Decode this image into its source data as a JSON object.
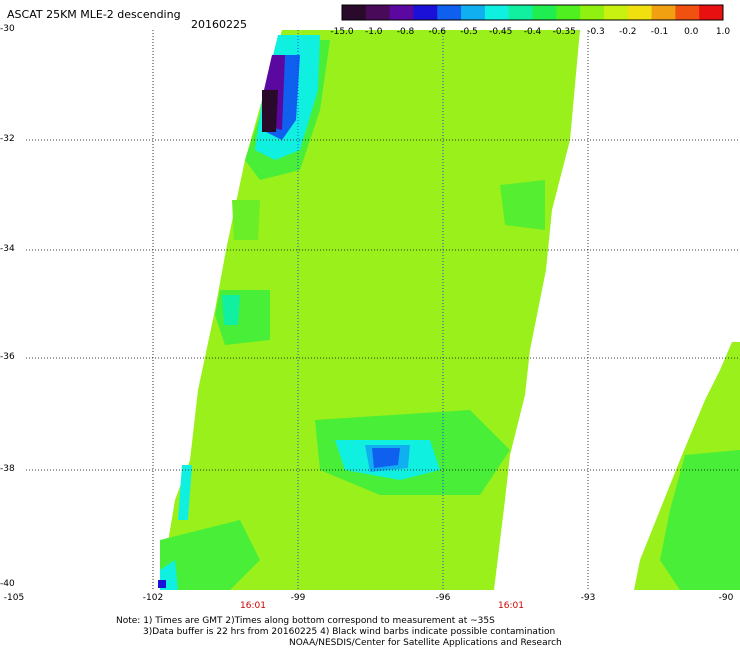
{
  "header": {
    "title": "ASCAT 25KM MLE-2 descending",
    "date": "20160225"
  },
  "colorbar": {
    "colors": [
      "#2a0a2a",
      "#4a0a5a",
      "#5a08a0",
      "#1a10d8",
      "#1060f0",
      "#10b0f0",
      "#10f0e0",
      "#10f0a0",
      "#20ee50",
      "#50f020",
      "#90f010",
      "#c8f010",
      "#f0e010",
      "#f0a010",
      "#f05010",
      "#e81010"
    ],
    "labels": [
      "-15.0",
      "-1.0",
      "-0.8",
      "-0.6",
      "-0.5",
      "-0.45",
      "-0.4",
      "-0.35",
      "-0.3",
      "-0.2",
      "-0.1",
      "0.0",
      "1.0"
    ]
  },
  "axes": {
    "y_labels": [
      "-30",
      "-32",
      "-34",
      "-36",
      "-38",
      "-40"
    ],
    "x_labels": [
      "-105",
      "-102",
      "-99",
      "-96",
      "-93",
      "-90"
    ]
  },
  "times": [
    "16:01",
    "16:01"
  ],
  "notes": [
    "Note: 1) Times are GMT 2)Times along bottom correspond to measurement at ~35S",
    "3)Data buffer is 22 hrs from 20160225 4) Black wind barbs indicate possible contamination",
    "NOAA/NESDIS/Center for Satellite Applications and Research"
  ],
  "map": {
    "background_swath_color": "#9af01a",
    "secondary_color": "#48ee38"
  }
}
